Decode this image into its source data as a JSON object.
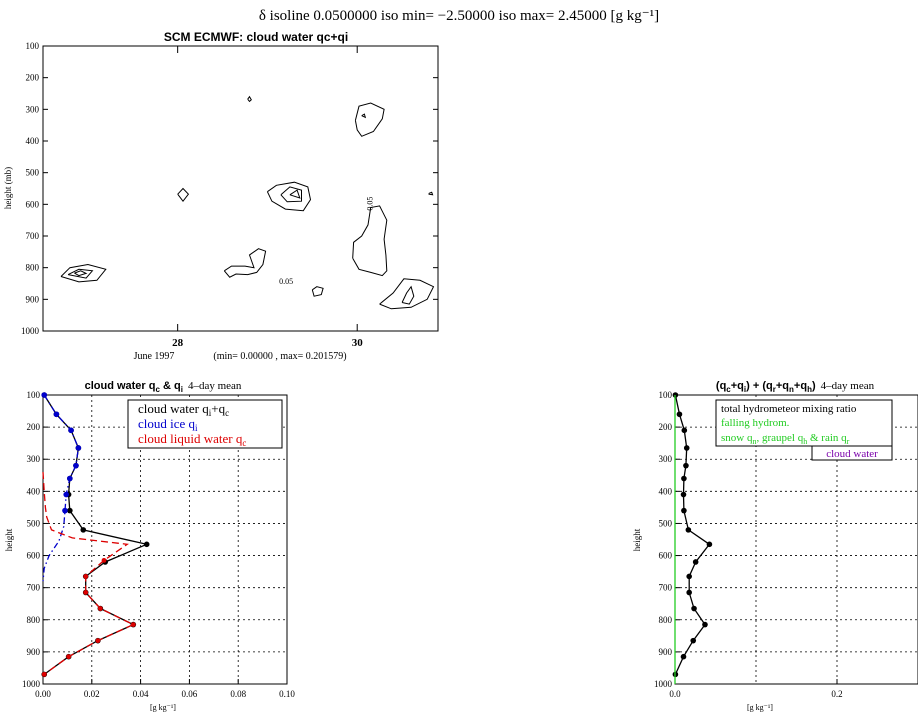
{
  "header": {
    "text": "δ isoline 0.0500000   iso min= −2.50000   iso max= 2.45000 [g kg⁻¹]"
  },
  "chart_data": [
    {
      "id": "contour",
      "type": "contour",
      "title": "SCM ECMWF: cloud water qc+qi",
      "ylabel": "height (mb)",
      "ylim": [
        1000,
        100
      ],
      "yticks": [
        100,
        200,
        300,
        400,
        500,
        600,
        700,
        800,
        900,
        1000
      ],
      "xlim": [
        26.5,
        30.9
      ],
      "xticks": [
        {
          "value": 28,
          "label": "28"
        },
        {
          "value": 30,
          "label": "30"
        }
      ],
      "xsublabel": "June 1997",
      "range_note": "(min= 0.00000 , max= 0.201579)",
      "contour_labels": [
        {
          "text": "0.05",
          "x": 29.13,
          "y": 852
        },
        {
          "text": "0.05",
          "x": 30.17,
          "y": 620
        }
      ],
      "contours": [
        [
          [
            26.7,
            828
          ],
          [
            26.8,
            800
          ],
          [
            27.0,
            790
          ],
          [
            27.2,
            805
          ],
          [
            27.1,
            840
          ],
          [
            26.9,
            845
          ],
          [
            26.7,
            828
          ]
        ],
        [
          [
            26.78,
            822
          ],
          [
            26.9,
            805
          ],
          [
            27.05,
            810
          ],
          [
            26.98,
            833
          ],
          [
            26.78,
            822
          ]
        ],
        [
          [
            26.85,
            817
          ],
          [
            26.92,
            810
          ],
          [
            26.98,
            818
          ],
          [
            26.9,
            825
          ],
          [
            26.85,
            817
          ]
        ],
        [
          [
            28.0,
            568
          ],
          [
            28.06,
            550
          ],
          [
            28.12,
            568
          ],
          [
            28.06,
            590
          ],
          [
            28.0,
            568
          ]
        ],
        [
          [
            28.78,
            268
          ],
          [
            28.8,
            260
          ],
          [
            28.82,
            270
          ],
          [
            28.8,
            275
          ],
          [
            28.78,
            268
          ]
        ],
        [
          [
            29.0,
            560
          ],
          [
            29.1,
            540
          ],
          [
            29.3,
            530
          ],
          [
            29.45,
            545
          ],
          [
            29.48,
            585
          ],
          [
            29.4,
            620
          ],
          [
            29.2,
            615
          ],
          [
            29.05,
            590
          ],
          [
            29.0,
            560
          ]
        ],
        [
          [
            29.15,
            570
          ],
          [
            29.25,
            545
          ],
          [
            29.38,
            555
          ],
          [
            29.38,
            590
          ],
          [
            29.22,
            592
          ],
          [
            29.15,
            570
          ]
        ],
        [
          [
            29.25,
            570
          ],
          [
            29.33,
            555
          ],
          [
            29.36,
            580
          ],
          [
            29.25,
            570
          ]
        ],
        [
          [
            28.52,
            810
          ],
          [
            28.6,
            795
          ],
          [
            28.75,
            795
          ],
          [
            28.85,
            800
          ],
          [
            28.8,
            760
          ],
          [
            28.9,
            740
          ],
          [
            28.98,
            748
          ],
          [
            28.95,
            790
          ],
          [
            28.88,
            815
          ],
          [
            28.78,
            822
          ],
          [
            28.65,
            820
          ],
          [
            28.58,
            830
          ],
          [
            28.52,
            810
          ]
        ],
        [
          [
            29.5,
            870
          ],
          [
            29.55,
            860
          ],
          [
            29.62,
            865
          ],
          [
            29.6,
            885
          ],
          [
            29.52,
            890
          ],
          [
            29.5,
            870
          ]
        ],
        [
          [
            29.98,
            335
          ],
          [
            30.02,
            290
          ],
          [
            30.15,
            280
          ],
          [
            30.3,
            300
          ],
          [
            30.28,
            330
          ],
          [
            30.18,
            370
          ],
          [
            30.05,
            385
          ],
          [
            30.0,
            365
          ],
          [
            29.98,
            335
          ]
        ],
        [
          [
            30.05,
            320
          ],
          [
            30.08,
            315
          ],
          [
            30.09,
            325
          ],
          [
            30.05,
            320
          ]
        ],
        [
          [
            29.95,
            770
          ],
          [
            29.96,
            720
          ],
          [
            30.05,
            700
          ],
          [
            30.12,
            665
          ],
          [
            30.15,
            610
          ],
          [
            30.25,
            605
          ],
          [
            30.33,
            650
          ],
          [
            30.3,
            710
          ],
          [
            30.32,
            760
          ],
          [
            30.33,
            810
          ],
          [
            30.28,
            825
          ],
          [
            30.15,
            815
          ],
          [
            30.02,
            805
          ],
          [
            29.95,
            770
          ]
        ],
        [
          [
            30.25,
            915
          ],
          [
            30.4,
            880
          ],
          [
            30.52,
            835
          ],
          [
            30.7,
            840
          ],
          [
            30.85,
            860
          ],
          [
            30.78,
            900
          ],
          [
            30.6,
            925
          ],
          [
            30.38,
            930
          ],
          [
            30.25,
            915
          ]
        ],
        [
          [
            30.5,
            910
          ],
          [
            30.55,
            880
          ],
          [
            30.6,
            860
          ],
          [
            30.63,
            890
          ],
          [
            30.58,
            915
          ],
          [
            30.5,
            910
          ]
        ],
        [
          [
            30.8,
            565
          ],
          [
            30.83,
            562
          ],
          [
            30.84,
            570
          ],
          [
            30.8,
            568
          ],
          [
            30.8,
            565
          ]
        ]
      ]
    },
    {
      "id": "profile-left",
      "type": "line",
      "title_main": "cloud water q",
      "title_sub1": "c",
      "title_amp": " & q",
      "title_sub2": "i",
      "title_tail": "4–day mean",
      "xlabel": "[g kg⁻¹]",
      "ylabel": "height",
      "xlim": [
        0.0,
        0.1
      ],
      "xticks": [
        "0.00",
        "0.02",
        "0.04",
        "0.06",
        "0.08",
        "0.10"
      ],
      "xtick_values": [
        0.0,
        0.02,
        0.04,
        0.06,
        0.08,
        0.1
      ],
      "ylim": [
        1000,
        100
      ],
      "yticks": [
        100,
        200,
        300,
        400,
        500,
        600,
        700,
        800,
        900,
        1000
      ],
      "grid": true,
      "legend_position": "top-right",
      "series": [
        {
          "name": "cloud water q",
          "sub": "i",
          "mid": "+q",
          "sub2": "c",
          "color": "#000000",
          "dash": "solid",
          "markers": true,
          "x": [
            0.0005,
            0.0055,
            0.0115,
            0.0145,
            0.0135,
            0.011,
            0.0105,
            0.011,
            0.0165,
            0.0425,
            0.0255,
            0.0175,
            0.0175,
            0.0235,
            0.037,
            0.0225,
            0.0105,
            0.0005
          ],
          "y": [
            100,
            160,
            210,
            265,
            320,
            360,
            410,
            460,
            520,
            565,
            620,
            665,
            715,
            765,
            815,
            865,
            915,
            970
          ]
        },
        {
          "name": "cloud ice q",
          "sub": "i",
          "mid": "",
          "sub2": "",
          "color": "#0000cc",
          "dash": "dashdot",
          "markers": false,
          "x": [
            0.0005,
            0.0055,
            0.0115,
            0.0145,
            0.0135,
            0.011,
            0.0095,
            0.009,
            0.0085,
            0.0065,
            0.0025,
            0.0005,
            0.0
          ],
          "y": [
            100,
            160,
            210,
            265,
            320,
            360,
            410,
            460,
            510,
            555,
            600,
            640,
            680
          ]
        },
        {
          "name": "cloud liquid water q",
          "sub": "c",
          "mid": "",
          "sub2": "",
          "color": "#dd0000",
          "dash": "dashed",
          "markers": false,
          "x": [
            0.0,
            0.0005,
            0.001,
            0.0015,
            0.0035,
            0.012,
            0.0345,
            0.025,
            0.0175,
            0.0175,
            0.0235,
            0.037,
            0.0225,
            0.0105,
            0.0005
          ],
          "y": [
            340,
            400,
            450,
            480,
            520,
            545,
            565,
            615,
            665,
            715,
            765,
            815,
            865,
            915,
            970
          ]
        }
      ]
    },
    {
      "id": "profile-right",
      "type": "line",
      "title_text": "(q",
      "title_s1": "c",
      "title_t2": "+q",
      "title_s2": "i",
      "title_t3": ") + (q",
      "title_s3": "r",
      "title_t4": "+q",
      "title_s4": "n",
      "title_t5": "+q",
      "title_s5": "h",
      "title_t6": ")",
      "title_tail": "4–day mean",
      "xlabel": "[g kg⁻¹]",
      "ylabel": "height",
      "xlim": [
        0.0,
        0.3
      ],
      "xticks": [
        "0.0",
        "0.2"
      ],
      "xtick_values": [
        0.0,
        0.2
      ],
      "xgrid_values": [
        0.0,
        0.1,
        0.2,
        0.3
      ],
      "ylim": [
        1000,
        100
      ],
      "yticks": [
        100,
        200,
        300,
        400,
        500,
        600,
        700,
        800,
        900,
        1000
      ],
      "grid": true,
      "legend": {
        "line1": "total hydrometeor mixing ratio",
        "line2": "falling hydrom.",
        "line3_a": "snow q",
        "line3_s1": "n",
        "line3_b": ", graupel q",
        "line3_s2": "h",
        "line3_c": " & rain q",
        "line3_s3": "r",
        "box": "cloud water",
        "color_total": "#000000",
        "color_falling": "#22cc22",
        "color_cloud": "#7a00aa"
      },
      "series": [
        {
          "name": "total hydrometeor mixing ratio",
          "color": "#000000",
          "dash": "solid",
          "markers": true,
          "x": [
            0.0005,
            0.0055,
            0.0115,
            0.0145,
            0.0135,
            0.011,
            0.0105,
            0.011,
            0.0165,
            0.0425,
            0.0255,
            0.0175,
            0.0175,
            0.0235,
            0.037,
            0.0225,
            0.0105,
            0.0005
          ],
          "y": [
            100,
            160,
            210,
            265,
            320,
            360,
            410,
            460,
            520,
            565,
            620,
            665,
            715,
            765,
            815,
            865,
            915,
            970
          ]
        },
        {
          "name": "falling hydrom.",
          "color": "#22cc22",
          "dash": "solid",
          "markers": false,
          "x": [
            0.0,
            0.0
          ],
          "y": [
            100,
            1000
          ]
        }
      ]
    }
  ]
}
